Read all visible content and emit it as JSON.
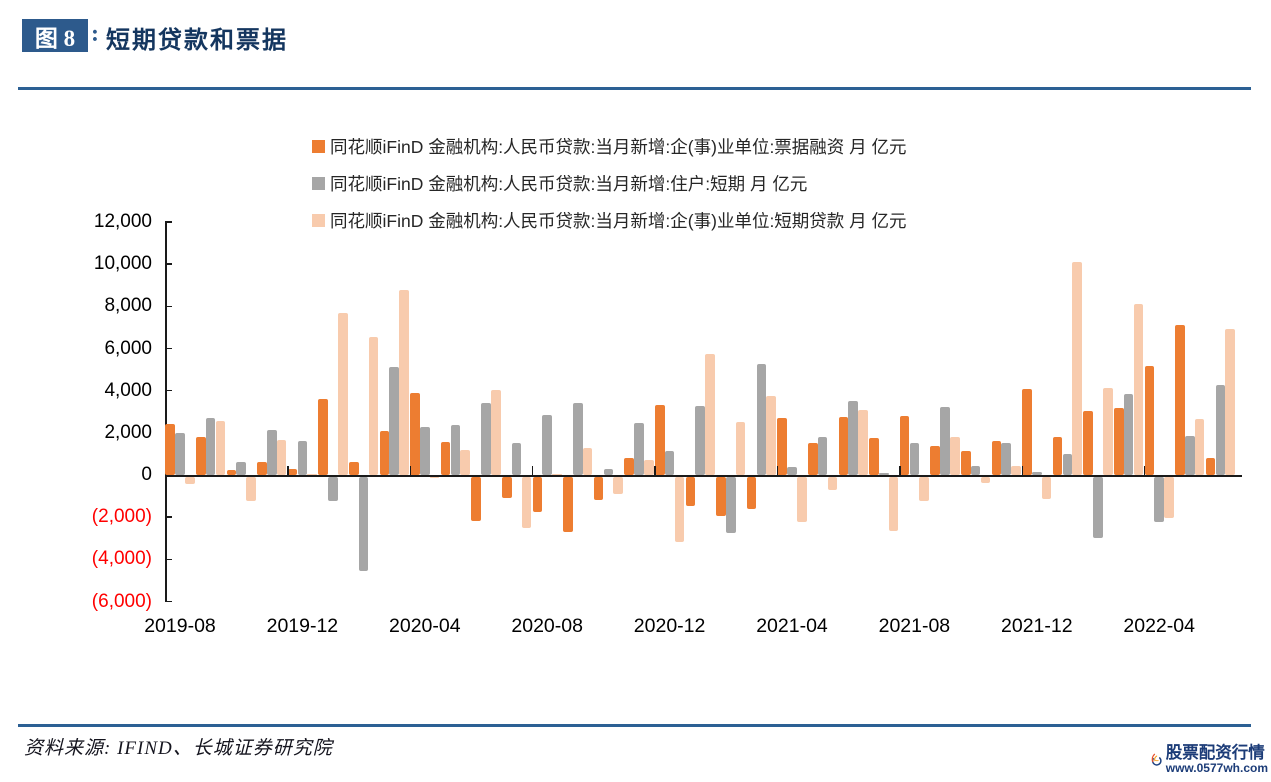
{
  "figure": {
    "badge": "图 8",
    "colon": ":",
    "title": "短期贷款和票据"
  },
  "chart_data": {
    "type": "bar",
    "title": "短期贷款和票据",
    "unit": "亿元",
    "grid": false,
    "legend_position": "top",
    "ylim": [
      -6000,
      12000
    ],
    "y_tick_step": 2000,
    "y_tick_labels": [
      "12,000",
      "10,000",
      "8,000",
      "6,000",
      "4,000",
      "2,000",
      "0",
      "(2,000)",
      "(4,000)",
      "(6,000)"
    ],
    "x_tick_labels": [
      "2019-08",
      "2019-12",
      "2020-04",
      "2020-08",
      "2020-12",
      "2021-04",
      "2021-08",
      "2021-12",
      "2022-04"
    ],
    "x_tick_every": 4,
    "categories": [
      "2019-08",
      "2019-09",
      "2019-10",
      "2019-11",
      "2019-12",
      "2020-01",
      "2020-02",
      "2020-03",
      "2020-04",
      "2020-05",
      "2020-06",
      "2020-07",
      "2020-08",
      "2020-09",
      "2020-10",
      "2020-11",
      "2020-12",
      "2021-01",
      "2021-02",
      "2021-03",
      "2021-04",
      "2021-05",
      "2021-06",
      "2021-07",
      "2021-08",
      "2021-09",
      "2021-10",
      "2021-11",
      "2021-12",
      "2022-01",
      "2022-02",
      "2022-03",
      "2022-04",
      "2022-05",
      "2022-06"
    ],
    "series": [
      {
        "name": "同花顺iFinD 金融机构:人民币贷款:当月新增:企(事)业单位:票据融资 月 亿元",
        "color": "#ED7D31",
        "values": [
          2426,
          1790,
          214,
          624,
          262,
          3596,
          634,
          2109,
          3910,
          1586,
          -2104,
          -1021,
          -1676,
          -2632,
          -1124,
          804,
          3341,
          -1405,
          -1855,
          -1525,
          2711,
          1538,
          2747,
          1771,
          2813,
          1353,
          1160,
          1605,
          4087,
          1788,
          3052,
          3187,
          5148,
          7129,
          796
        ]
      },
      {
        "name": "同花顺iFinD 金融机构:人民币贷款:当月新增:住户:短期 月 亿元",
        "color": "#A6A6A6",
        "values": [
          1998,
          2707,
          623,
          2142,
          1635,
          -1149,
          -4504,
          5144,
          2280,
          2381,
          3400,
          1510,
          2844,
          3394,
          272,
          2486,
          1142,
          3278,
          -2691,
          5242,
          365,
          1806,
          3500,
          85,
          1496,
          3219,
          426,
          1517,
          157,
          1006,
          -2911,
          3848,
          -2170,
          1840,
          4282
        ]
      },
      {
        "name": "同花顺iFinD 金融机构:人民币贷款:当月新增:企(事)业单位:短期贷款 月 亿元",
        "color": "#F8CBAD",
        "values": [
          -355,
          2550,
          -1178,
          1643,
          35,
          7699,
          6549,
          8752,
          -62,
          1209,
          4051,
          -2421,
          47,
          1274,
          -837,
          734,
          -3097,
          5755,
          2497,
          3748,
          -2147,
          -644,
          3091,
          -2577,
          -1149,
          1826,
          -288,
          410,
          -1054,
          10100,
          4111,
          8089,
          -1948,
          2642,
          6906
        ]
      }
    ],
    "negative_tick_color": "#FF0000"
  },
  "footer": {
    "source": "资料来源: IFIND、长城证券研究院"
  },
  "watermark": {
    "line1": "股票配资行情",
    "line2": "www.0577wh.com"
  },
  "colors": {
    "accent_blue": "#2D5A8C",
    "divider_blue": "#2C6094",
    "title_text": "#14365F",
    "watermark_blue": "#1C3C78"
  }
}
